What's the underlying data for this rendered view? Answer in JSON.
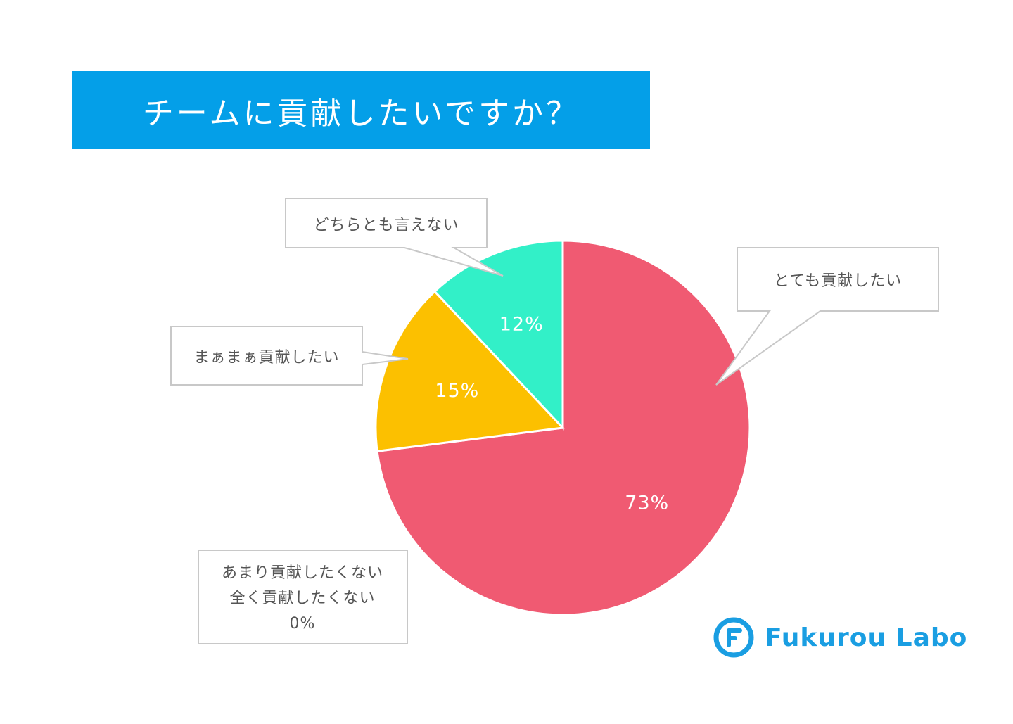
{
  "title": "チームに貢献したいですか？",
  "chart_data": {
    "type": "pie",
    "title": "チームに貢献したいですか？",
    "slices": [
      {
        "label": "とても貢献したい",
        "value": 73,
        "display": "73%",
        "color": "#f05a72"
      },
      {
        "label": "まぁまぁ貢献したい",
        "value": 15,
        "display": "15%",
        "color": "#fcc000"
      },
      {
        "label": "どちらとも言えない",
        "value": 12,
        "display": "12%",
        "color": "#32f0c8"
      }
    ],
    "zero_note": {
      "lines": [
        "あまり貢献したくない",
        "全く貢献したくない",
        "0%"
      ]
    }
  },
  "logo": {
    "text": "Fukurou Labo",
    "color": "#1a9ee2"
  }
}
